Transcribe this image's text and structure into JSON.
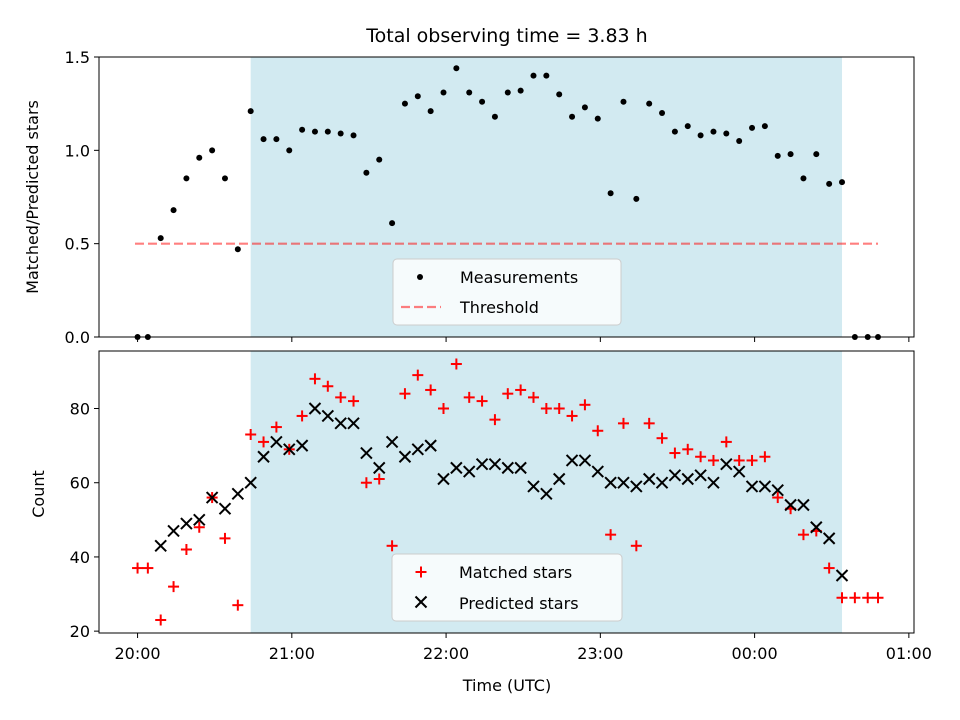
{
  "chart_data": [
    {
      "type": "scatter",
      "title": "Total observing time = 3.83 h",
      "ylabel": "Matched/Predicted stars",
      "xlabel": "",
      "x_unit": "minutes after 20:00 UTC",
      "xlim": [
        -15,
        302
      ],
      "ylim": [
        0.0,
        1.5
      ],
      "yticks": [
        0.0,
        0.5,
        1.0,
        1.5
      ],
      "ytick_labels": [
        "0.0",
        "0.5",
        "1.0",
        "1.5"
      ],
      "observing_window": {
        "start": 44,
        "end": 274,
        "color": "#add8e6"
      },
      "legend": {
        "position": "lower-center",
        "entries": [
          "Measurements",
          "Threshold"
        ]
      },
      "threshold": {
        "name": "Threshold",
        "value": 0.5,
        "x": [
          -1,
          288
        ],
        "color": "#ff0000"
      },
      "measurements": {
        "name": "Measurements",
        "x": [
          0,
          4,
          9,
          14,
          19,
          24,
          29,
          34,
          39,
          44,
          49,
          54,
          59,
          64,
          69,
          74,
          79,
          84,
          89,
          94,
          99,
          104,
          109,
          114,
          119,
          124,
          129,
          134,
          139,
          144,
          149,
          154,
          159,
          164,
          169,
          174,
          179,
          184,
          189,
          194,
          199,
          204,
          209,
          214,
          219,
          224,
          229,
          234,
          239,
          244,
          249,
          254,
          259,
          264,
          269,
          274,
          279,
          284,
          288
        ],
        "y": [
          0.0,
          0.0,
          0.53,
          0.68,
          0.85,
          0.96,
          1.0,
          0.85,
          0.47,
          1.21,
          1.06,
          1.06,
          1.0,
          1.11,
          1.1,
          1.1,
          1.09,
          1.08,
          0.88,
          0.95,
          0.61,
          1.25,
          1.29,
          1.21,
          1.31,
          1.44,
          1.31,
          1.26,
          1.18,
          1.31,
          1.32,
          1.4,
          1.4,
          1.3,
          1.18,
          1.23,
          1.17,
          0.77,
          1.26,
          0.74,
          1.25,
          1.2,
          1.1,
          1.13,
          1.08,
          1.1,
          1.09,
          1.05,
          1.12,
          1.13,
          0.97,
          0.98,
          0.85,
          0.98,
          0.82,
          0.83,
          0.0,
          0.0,
          0.0
        ]
      }
    },
    {
      "type": "scatter",
      "title": "",
      "ylabel": "Count",
      "xlabel": "Time (UTC)",
      "x_unit": "minutes after 20:00 UTC",
      "xlim": [
        -15,
        302
      ],
      "ylim": [
        19.5,
        95.5
      ],
      "yticks": [
        20,
        40,
        60,
        80
      ],
      "ytick_labels": [
        "20",
        "40",
        "60",
        "80"
      ],
      "xticks": [
        0,
        60,
        120,
        180,
        240,
        300
      ],
      "xtick_labels": [
        "20:00",
        "21:00",
        "22:00",
        "23:00",
        "00:00",
        "01:00"
      ],
      "observing_window": {
        "start": 44,
        "end": 274,
        "color": "#add8e6"
      },
      "legend": {
        "position": "lower-center",
        "entries": [
          "Matched stars",
          "Predicted stars"
        ]
      },
      "series": [
        {
          "name": "Matched stars",
          "marker": "plus",
          "color": "#ff0000",
          "x": [
            0,
            4,
            9,
            14,
            19,
            24,
            29,
            34,
            39,
            44,
            49,
            54,
            59,
            64,
            69,
            74,
            79,
            84,
            89,
            94,
            99,
            104,
            109,
            114,
            119,
            124,
            129,
            134,
            139,
            144,
            149,
            154,
            159,
            164,
            169,
            174,
            179,
            184,
            189,
            194,
            199,
            204,
            209,
            214,
            219,
            224,
            229,
            234,
            239,
            244,
            249,
            254,
            259,
            264,
            269,
            274,
            279,
            284,
            288
          ],
          "y": [
            37,
            37,
            23,
            32,
            42,
            48,
            56,
            45,
            27,
            73,
            71,
            75,
            69,
            78,
            88,
            86,
            83,
            82,
            60,
            61,
            43,
            84,
            89,
            85,
            80,
            92,
            83,
            82,
            77,
            84,
            85,
            83,
            80,
            80,
            78,
            81,
            74,
            46,
            76,
            43,
            76,
            72,
            68,
            69,
            67,
            66,
            71,
            66,
            66,
            67,
            56,
            53,
            46,
            47,
            37,
            29,
            29,
            29,
            29
          ]
        },
        {
          "name": "Predicted stars",
          "marker": "x",
          "color": "#000000",
          "x": [
            9,
            14,
            19,
            24,
            29,
            34,
            39,
            44,
            49,
            54,
            59,
            64,
            69,
            74,
            79,
            84,
            89,
            94,
            99,
            104,
            109,
            114,
            119,
            124,
            129,
            134,
            139,
            144,
            149,
            154,
            159,
            164,
            169,
            174,
            179,
            184,
            189,
            194,
            199,
            204,
            209,
            214,
            219,
            224,
            229,
            234,
            239,
            244,
            249,
            254,
            259,
            264,
            269,
            274
          ],
          "y": [
            43,
            47,
            49,
            50,
            56,
            53,
            57,
            60,
            67,
            71,
            69,
            70,
            80,
            78,
            76,
            76,
            68,
            64,
            71,
            67,
            69,
            70,
            61,
            64,
            63,
            65,
            65,
            64,
            64,
            59,
            57,
            61,
            66,
            66,
            63,
            60,
            60,
            59,
            61,
            60,
            62,
            61,
            62,
            60,
            65,
            63,
            59,
            59,
            58,
            54,
            54,
            48,
            45,
            35
          ]
        }
      ]
    }
  ]
}
